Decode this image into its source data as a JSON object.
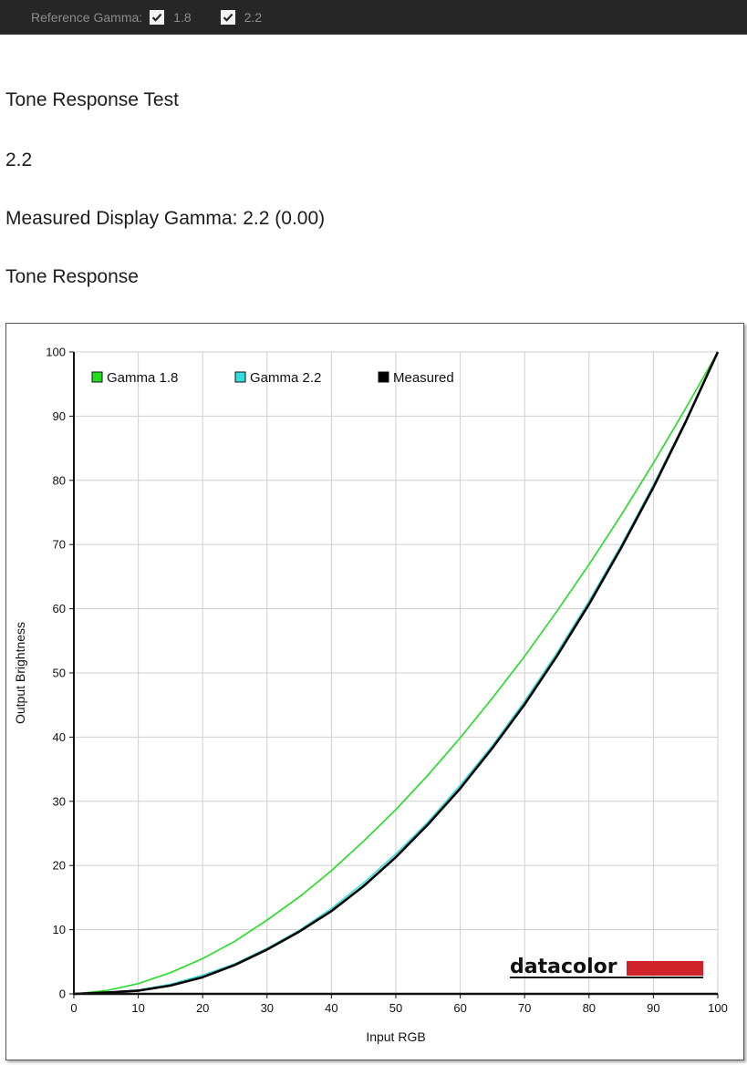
{
  "toolbar": {
    "reference_gamma_label": "Reference Gamma:",
    "options": [
      {
        "value": "1.8",
        "checked": true
      },
      {
        "value": "2.2",
        "checked": true
      }
    ]
  },
  "content": {
    "title": "Tone Response Test",
    "target_gamma": "2.2",
    "measured_text": "Measured Display Gamma: 2.2 (0.00)",
    "chart_heading": "Tone Response"
  },
  "logo": {
    "text": "datacolor",
    "bar_color": "#d0222b"
  },
  "chart_data": {
    "type": "line",
    "title": "",
    "xlabel": "Input RGB",
    "ylabel": "Output Brightness",
    "xlim": [
      0,
      100
    ],
    "ylim": [
      0,
      100
    ],
    "xticks": [
      0,
      10,
      20,
      30,
      40,
      50,
      60,
      70,
      80,
      90,
      100
    ],
    "yticks": [
      0,
      10,
      20,
      30,
      40,
      50,
      60,
      70,
      80,
      90,
      100
    ],
    "grid": true,
    "legend_position": "top-left",
    "series": [
      {
        "name": "Gamma 1.8",
        "color": "#22dd22",
        "x": [
          0,
          5,
          10,
          15,
          20,
          25,
          30,
          35,
          40,
          45,
          50,
          55,
          60,
          65,
          70,
          75,
          80,
          85,
          90,
          95,
          100
        ],
        "y": [
          0,
          0.5,
          1.6,
          3.3,
          5.5,
          8.2,
          11.5,
          15.1,
          19.2,
          23.8,
          28.7,
          34.1,
          39.9,
          46.1,
          52.6,
          59.6,
          66.9,
          74.6,
          82.7,
          91.2,
          100
        ]
      },
      {
        "name": "Gamma 2.2",
        "color": "#33dddd",
        "x": [
          0,
          5,
          10,
          15,
          20,
          25,
          30,
          35,
          40,
          45,
          50,
          55,
          60,
          65,
          70,
          75,
          80,
          85,
          90,
          95,
          100
        ],
        "y": [
          0,
          0.1,
          0.6,
          1.5,
          2.9,
          4.7,
          7.1,
          9.9,
          13.3,
          17.3,
          21.8,
          26.8,
          32.5,
          38.7,
          45.6,
          53.1,
          61.2,
          69.9,
          79.3,
          89.3,
          100
        ]
      },
      {
        "name": "Measured",
        "color": "#000000",
        "x": [
          0,
          5,
          10,
          15,
          20,
          25,
          30,
          35,
          40,
          45,
          50,
          55,
          60,
          65,
          70,
          75,
          80,
          85,
          90,
          95,
          100
        ],
        "y": [
          0,
          0.2,
          0.5,
          1.3,
          2.6,
          4.5,
          6.9,
          9.7,
          12.9,
          16.8,
          21.3,
          26.4,
          32.0,
          38.3,
          45.1,
          52.6,
          60.7,
          69.5,
          78.9,
          89.1,
          100
        ]
      }
    ]
  }
}
